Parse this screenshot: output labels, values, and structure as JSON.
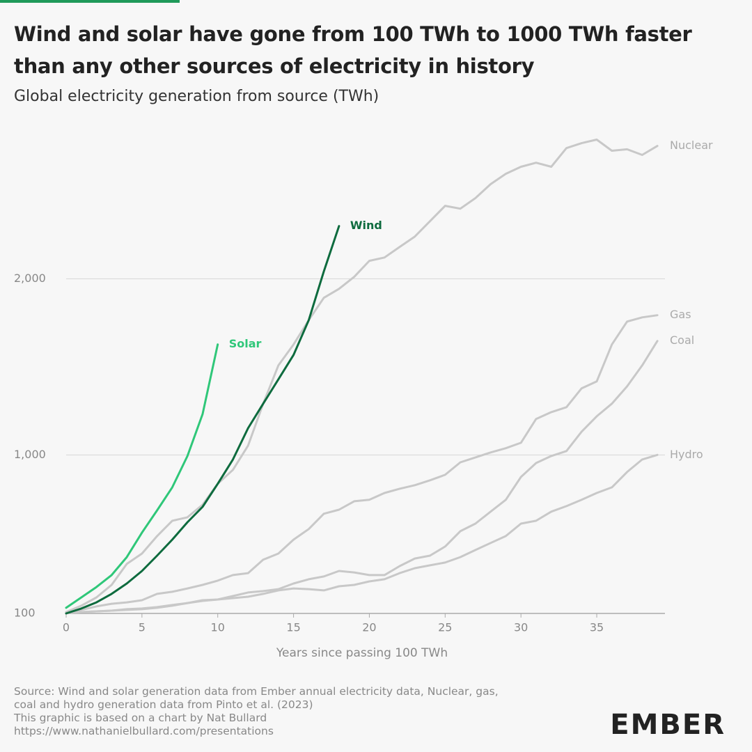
{
  "chart_data": {
    "type": "line",
    "title": "Wind and solar have gone from 100 TWh to 1000 TWh faster than any other sources of electricity in history",
    "subtitle": "Global electricity generation from source (TWh)",
    "x_label": "Years since passing 100 TWh",
    "x": [
      0,
      1,
      2,
      3,
      4,
      5,
      6,
      7,
      8,
      9,
      10,
      11,
      12,
      13,
      14,
      15,
      16,
      17,
      18,
      19,
      20,
      21,
      22,
      23,
      24,
      25,
      26,
      27,
      28,
      29,
      30,
      31,
      32,
      33,
      34,
      35,
      36,
      37,
      38,
      39
    ],
    "xlim": [
      0,
      39.5
    ],
    "xticks": [
      0,
      5,
      10,
      15,
      20,
      25,
      30,
      35
    ],
    "ylim": [
      100,
      2800
    ],
    "yticks": [
      100,
      {
        "value": 1000,
        "label": "1,000"
      },
      {
        "value": 2000,
        "label": "2,000"
      }
    ],
    "grid": true,
    "series": [
      {
        "name": "Nuclear",
        "color": "#c8c8c8",
        "values": [
          108,
          144,
          191,
          262,
          381,
          440,
          539,
          626,
          646,
          717,
          836,
          915,
          1053,
          1291,
          1508,
          1627,
          1765,
          1892,
          1943,
          2011,
          2102,
          2121,
          2181,
          2240,
          2327,
          2414,
          2398,
          2458,
          2537,
          2596,
          2636,
          2659,
          2636,
          2742,
          2770,
          2790,
          2727,
          2735,
          2703,
          2754
        ]
      },
      {
        "name": "Gas",
        "color": "#c8c8c8",
        "values": [
          104,
          120,
          140,
          155,
          163,
          175,
          211,
          223,
          242,
          262,
          286,
          318,
          329,
          405,
          440,
          519,
          579,
          666,
          689,
          737,
          745,
          784,
          808,
          828,
          856,
          887,
          958,
          986,
          1014,
          1038,
          1069,
          1204,
          1243,
          1271,
          1378,
          1417,
          1627,
          1757,
          1781,
          1793
        ]
      },
      {
        "name": "Coal",
        "color": "#c8c8c8",
        "values": [
          104,
          108,
          112,
          116,
          124,
          128,
          136,
          148,
          159,
          171,
          179,
          199,
          219,
          227,
          238,
          270,
          294,
          310,
          341,
          333,
          318,
          318,
          369,
          412,
          428,
          480,
          567,
          610,
          678,
          745,
          875,
          954,
          994,
          1022,
          1132,
          1219,
          1291,
          1389,
          1508,
          1647
        ]
      },
      {
        "name": "Hydro",
        "color": "#c8c8c8",
        "values": [
          104,
          108,
          112,
          116,
          120,
          124,
          132,
          144,
          159,
          175,
          179,
          187,
          195,
          211,
          231,
          242,
          238,
          231,
          254,
          262,
          282,
          294,
          329,
          357,
          373,
          389,
          420,
          460,
          500,
          539,
          610,
          626,
          678,
          709,
          745,
          784,
          816,
          903,
          974,
          1000
        ]
      },
      {
        "name": "Wind",
        "color": "#0e6b3e",
        "values": [
          100,
          128,
          163,
          211,
          270,
          341,
          428,
          519,
          618,
          705,
          836,
          974,
          1152,
          1291,
          1429,
          1568,
          1765,
          2042,
          2299,
          null,
          null,
          null,
          null,
          null,
          null,
          null,
          null,
          null,
          null,
          null,
          null,
          null,
          null,
          null,
          null,
          null,
          null,
          null,
          null,
          null
        ]
      },
      {
        "name": "Solar",
        "color": "#2fc779",
        "values": [
          132,
          191,
          250,
          318,
          420,
          559,
          685,
          816,
          994,
          1231,
          1627,
          null,
          null,
          null,
          null,
          null,
          null,
          null,
          null,
          null,
          null,
          null,
          null,
          null,
          null,
          null,
          null,
          null,
          null,
          null,
          null,
          null,
          null,
          null,
          null,
          null,
          null,
          null,
          null,
          null
        ]
      }
    ],
    "source": [
      "Source: Wind and solar generation data from Ember annual electricity data, Nuclear, gas,",
      "coal and hydro generation data from Pinto et al. (2023)",
      "This graphic is based on a chart by Nat Bullard",
      "https://www.nathanielbullard.com/presentations"
    ],
    "logo": "EMBER"
  }
}
